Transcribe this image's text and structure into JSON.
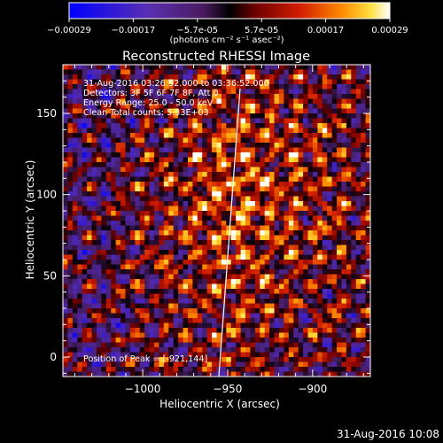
{
  "colorbar": {
    "ticks": [
      "-0.00029",
      "-0.00017",
      "-5.7e-05",
      "5.7e-05",
      "0.00017",
      "0.00029"
    ],
    "unit": "(photons cm⁻² s⁻¹ asec⁻²)"
  },
  "image": {
    "title": "Reconstructed RHESSI Image",
    "info": [
      "31-Aug-2016 03:26:52.000 to 03:36:52.000",
      "Detectors: 3F 5F 6F 7F 8F, Att 0",
      "Energy Range: 25.0 - 50.0 keV",
      "Clean     Total counts: 5.33E+03"
    ],
    "peak_label": "Position of Peak = [-921,144]"
  },
  "axes": {
    "xlabel": "Heliocentric X (arcsec)",
    "ylabel": "Heliocentric Y (arcsec)",
    "xticks": [
      {
        "v": -1000,
        "label": "−1000"
      },
      {
        "v": -950,
        "label": "−950"
      },
      {
        "v": -900,
        "label": "−900"
      }
    ],
    "yticks": [
      {
        "v": 0,
        "label": "0"
      },
      {
        "v": 50,
        "label": "50"
      },
      {
        "v": 100,
        "label": "100"
      },
      {
        "v": 150,
        "label": "150"
      }
    ],
    "xlim": [
      -1047,
      -866
    ],
    "ylim": [
      -12,
      180
    ]
  },
  "footer": {
    "timestamp": "31-Aug-2016 10:08"
  },
  "colors": {
    "bg": "#000000",
    "fg": "#ffffff"
  }
}
